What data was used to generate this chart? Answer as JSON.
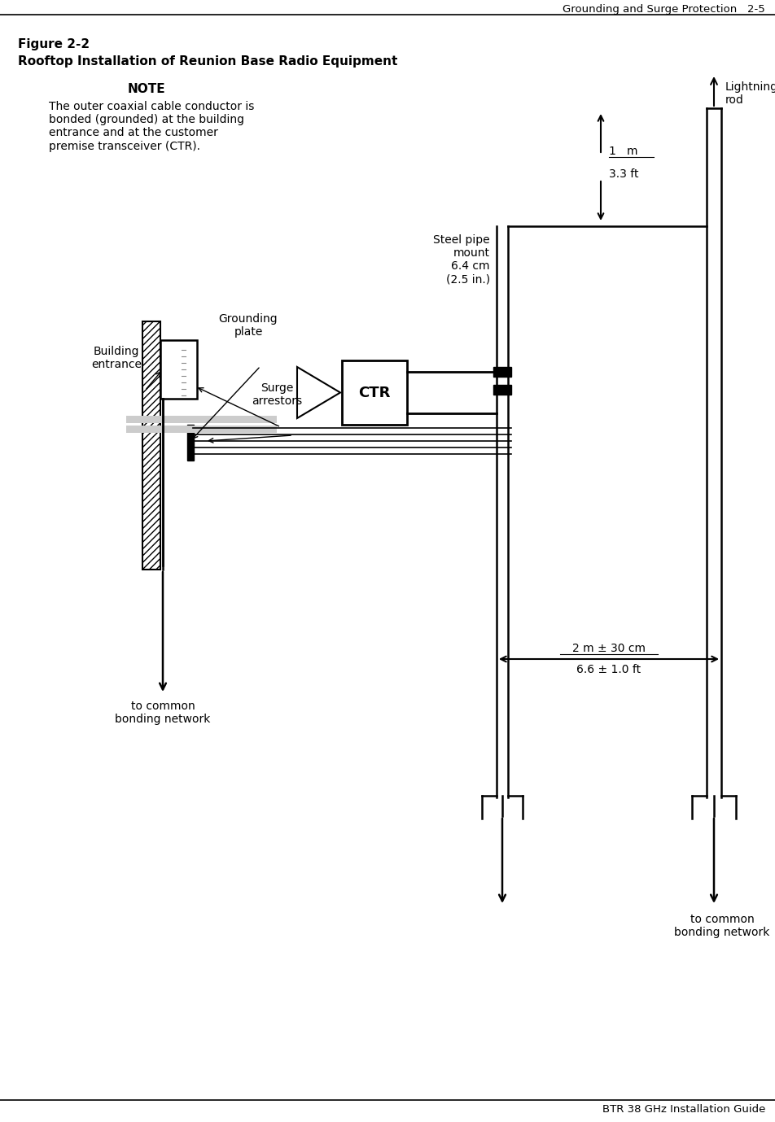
{
  "header_text": "Grounding and Surge Protection   2-5",
  "footer_text": "BTR 38 GHz Installation Guide",
  "figure_label": "Figure 2-2",
  "figure_title": "Rooftop Installation of Reunion Base Radio Equipment",
  "note_title": "NOTE",
  "note_body": "The outer coaxial cable conductor is\nbonded (grounded) at the building\nentrance and at the customer\npremise transceiver (CTR).",
  "label_lightning": "Lightning\nrod",
  "label_steel_pipe": "Steel pipe\nmount\n6.4 cm\n(2.5 in.)",
  "label_grounding": "Grounding\nplate",
  "label_building": "Building\nentrance",
  "label_surge": "Surge\narrestors",
  "label_1m_top": "1   m",
  "label_1m_bot": "3.3 ft",
  "label_2m_top": "2 m ± 30 cm",
  "label_2m_bot": "6.6 ± 1.0 ft",
  "label_ctr": "CTR",
  "label_common1": "to common\nbonding network",
  "label_common2": "to common\nbonding network",
  "bg_color": "#ffffff",
  "line_color": "#000000",
  "fig_w": 9.52,
  "fig_h": 13.79,
  "dpi": 100
}
